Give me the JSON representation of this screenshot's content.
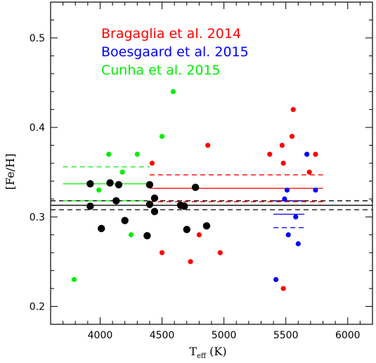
{
  "chart_data": {
    "type": "scatter",
    "xlabel": "T",
    "xlabel_sub": "eff",
    "xlabel_unit": "(K)",
    "ylabel": "[Fe/H]",
    "xlim": [
      3600,
      6200
    ],
    "ylim": [
      0.18,
      0.54
    ],
    "xticks": [
      4000,
      4500,
      5000,
      5500,
      6000
    ],
    "xtick_labels": [
      "4000",
      "4500",
      "5000",
      "5500",
      "6000"
    ],
    "yticks": [
      0.2,
      0.3,
      0.4,
      0.5
    ],
    "ytick_labels": [
      "0.2",
      "0.3",
      "0.4",
      "0.5"
    ],
    "x_minor_step": 100,
    "y_minor_step": 0.02,
    "grid": false,
    "legend_position": "top-left",
    "legend": [
      {
        "label": "Bragaglia et al. 2014",
        "color": "#ff0000"
      },
      {
        "label": "Boesgaard et al. 2015",
        "color": "#0000ff"
      },
      {
        "label": "Cunha et al. 2015",
        "color": "#00ee00"
      }
    ],
    "series": [
      {
        "name": "Bragaglia et al. 2014",
        "color": "#ff0000",
        "points": [
          [
            4420,
            0.36
          ],
          [
            4500,
            0.26
          ],
          [
            4730,
            0.25
          ],
          [
            4800,
            0.28
          ],
          [
            4870,
            0.38
          ],
          [
            4970,
            0.26
          ],
          [
            5370,
            0.37
          ],
          [
            5470,
            0.38
          ],
          [
            5480,
            0.36
          ],
          [
            5480,
            0.22
          ],
          [
            5550,
            0.39
          ],
          [
            5560,
            0.42
          ],
          [
            5690,
            0.35
          ],
          [
            5740,
            0.37
          ]
        ]
      },
      {
        "name": "Boesgaard et al. 2015",
        "color": "#0000ff",
        "points": [
          [
            5420,
            0.23
          ],
          [
            5490,
            0.32
          ],
          [
            5510,
            0.33
          ],
          [
            5520,
            0.28
          ],
          [
            5580,
            0.3
          ],
          [
            5600,
            0.27
          ],
          [
            5670,
            0.37
          ],
          [
            5740,
            0.33
          ]
        ]
      },
      {
        "name": "Cunha et al. 2015",
        "color": "#00ee00",
        "points": [
          [
            3790,
            0.23
          ],
          [
            3990,
            0.33
          ],
          [
            4070,
            0.37
          ],
          [
            4180,
            0.35
          ],
          [
            4250,
            0.28
          ],
          [
            4300,
            0.37
          ],
          [
            4500,
            0.39
          ],
          [
            4590,
            0.44
          ]
        ]
      },
      {
        "color": "#000000",
        "points": [
          [
            3920,
            0.337
          ],
          [
            3920,
            0.312
          ],
          [
            4010,
            0.287
          ],
          [
            4080,
            0.338
          ],
          [
            4130,
            0.318
          ],
          [
            4150,
            0.336
          ],
          [
            4200,
            0.296
          ],
          [
            4380,
            0.279
          ],
          [
            4400,
            0.336
          ],
          [
            4400,
            0.314
          ],
          [
            4440,
            0.321
          ],
          [
            4440,
            0.306
          ],
          [
            4650,
            0.313
          ],
          [
            4680,
            0.312
          ],
          [
            4700,
            0.286
          ],
          [
            4770,
            0.333
          ],
          [
            4860,
            0.29
          ]
        ]
      }
    ],
    "lines": [
      {
        "color": "#000000",
        "style": "solid",
        "x": [
          3600,
          6200
        ],
        "y": 0.313
      },
      {
        "color": "#000000",
        "style": "dashed",
        "x": [
          3600,
          6200
        ],
        "y": 0.318
      },
      {
        "color": "#000000",
        "style": "dashed",
        "x": [
          3600,
          6200
        ],
        "y": 0.308
      },
      {
        "color": "#00ee00",
        "style": "solid",
        "x": [
          3700,
          4400
        ],
        "y": 0.337
      },
      {
        "color": "#00ee00",
        "style": "dashed",
        "x": [
          3700,
          4400
        ],
        "y": 0.356
      },
      {
        "color": "#00ee00",
        "style": "dashed",
        "x": [
          3700,
          4400
        ],
        "y": 0.318
      },
      {
        "color": "#ff0000",
        "style": "solid",
        "x": [
          4400,
          5800
        ],
        "y": 0.332
      },
      {
        "color": "#ff0000",
        "style": "dashed",
        "x": [
          4400,
          5800
        ],
        "y": 0.347
      },
      {
        "color": "#ff0000",
        "style": "dashed",
        "x": [
          4400,
          5800
        ],
        "y": 0.317
      },
      {
        "color": "#0000ff",
        "style": "solid",
        "x": [
          5400,
          5650
        ],
        "y": 0.303
      },
      {
        "color": "#0000ff",
        "style": "dashed",
        "x": [
          5400,
          5650
        ],
        "y": 0.318
      },
      {
        "color": "#0000ff",
        "style": "dashed",
        "x": [
          5400,
          5650
        ],
        "y": 0.288
      }
    ]
  }
}
